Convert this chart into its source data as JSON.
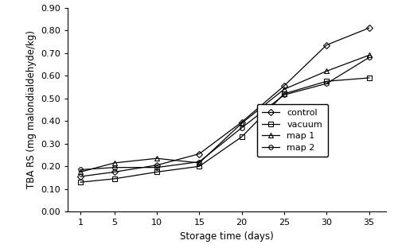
{
  "x": [
    1,
    5,
    10,
    15,
    20,
    25,
    30,
    35
  ],
  "series": {
    "control": {
      "y": [
        0.155,
        0.175,
        0.205,
        0.255,
        0.395,
        0.555,
        0.735,
        0.81
      ],
      "marker": "D",
      "linestyle": "-",
      "color": "#000000",
      "label": "control",
      "markersize": 4,
      "fillstyle": "none"
    },
    "vacuum": {
      "y": [
        0.13,
        0.145,
        0.175,
        0.2,
        0.33,
        0.52,
        0.575,
        0.59
      ],
      "marker": "s",
      "linestyle": "-",
      "color": "#000000",
      "label": "vacuum",
      "markersize": 4,
      "fillstyle": "none"
    },
    "map1": {
      "y": [
        0.175,
        0.215,
        0.235,
        0.215,
        0.39,
        0.54,
        0.62,
        0.69
      ],
      "marker": "^",
      "linestyle": "-",
      "color": "#000000",
      "label": "map 1",
      "markersize": 4,
      "fillstyle": "none"
    },
    "map2": {
      "y": [
        0.185,
        0.195,
        0.195,
        0.22,
        0.37,
        0.515,
        0.565,
        0.68
      ],
      "marker": "o",
      "linestyle": "-",
      "color": "#000000",
      "label": "map 2",
      "markersize": 4,
      "fillstyle": "none"
    }
  },
  "xlabel": "Storage time (days)",
  "ylabel": "TBA RS (mg malondialdehyde/kg)",
  "ylim": [
    0.0,
    0.9
  ],
  "yticks": [
    0.0,
    0.1,
    0.2,
    0.3,
    0.4,
    0.5,
    0.6,
    0.7,
    0.8,
    0.9
  ],
  "xticks": [
    1,
    5,
    10,
    15,
    20,
    25,
    30,
    35
  ],
  "background_color": "#ffffff"
}
